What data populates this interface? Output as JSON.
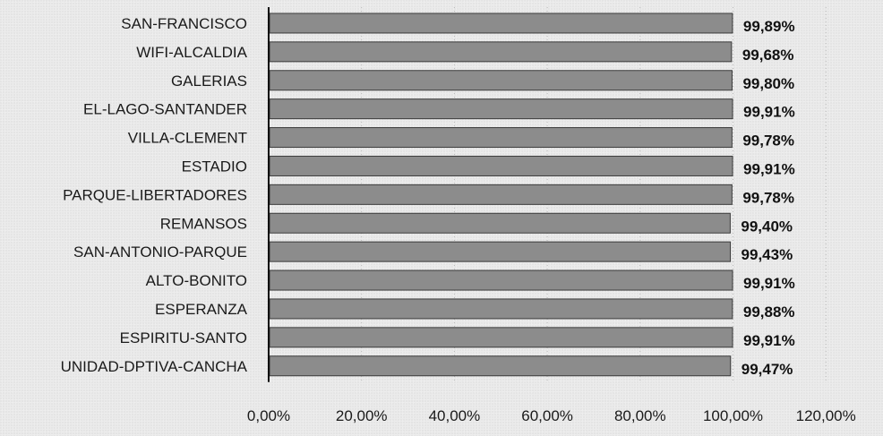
{
  "chart_data": {
    "type": "bar",
    "orientation": "horizontal",
    "categories": [
      "SAN-FRANCISCO",
      "WIFI-ALCALDIA",
      "GALERIAS",
      "EL-LAGO-SANTANDER",
      "VILLA-CLEMENT",
      "ESTADIO",
      "PARQUE-LIBERTADORES",
      "REMANSOS",
      "SAN-ANTONIO-PARQUE",
      "ALTO-BONITO",
      "ESPERANZA",
      "ESPIRITU-SANTO",
      "UNIDAD-DPTIVA-CANCHA"
    ],
    "values": [
      99.89,
      99.68,
      99.8,
      99.91,
      99.78,
      99.91,
      99.78,
      99.4,
      99.43,
      99.91,
      99.88,
      99.91,
      99.47
    ],
    "value_labels": [
      "99,89%",
      "99,68%",
      "99,80%",
      "99,91%",
      "99,78%",
      "99,91%",
      "99,78%",
      "99,40%",
      "99,43%",
      "99,91%",
      "99,88%",
      "99,91%",
      "99,47%"
    ],
    "x_ticks": [
      0,
      20,
      40,
      60,
      80,
      100,
      120
    ],
    "x_tick_labels": [
      "0,00%",
      "20,00%",
      "40,00%",
      "60,00%",
      "80,00%",
      "100,00%",
      "120,00%"
    ],
    "xlim": [
      0,
      120
    ],
    "title": "",
    "xlabel": "",
    "ylabel": "",
    "grid": true,
    "legend": "none",
    "colors": {
      "bar_fill": "#8c8c8c",
      "bar_stroke": "#3a3a3a",
      "axis": "#111111",
      "grid": "#b8b8b8"
    }
  }
}
